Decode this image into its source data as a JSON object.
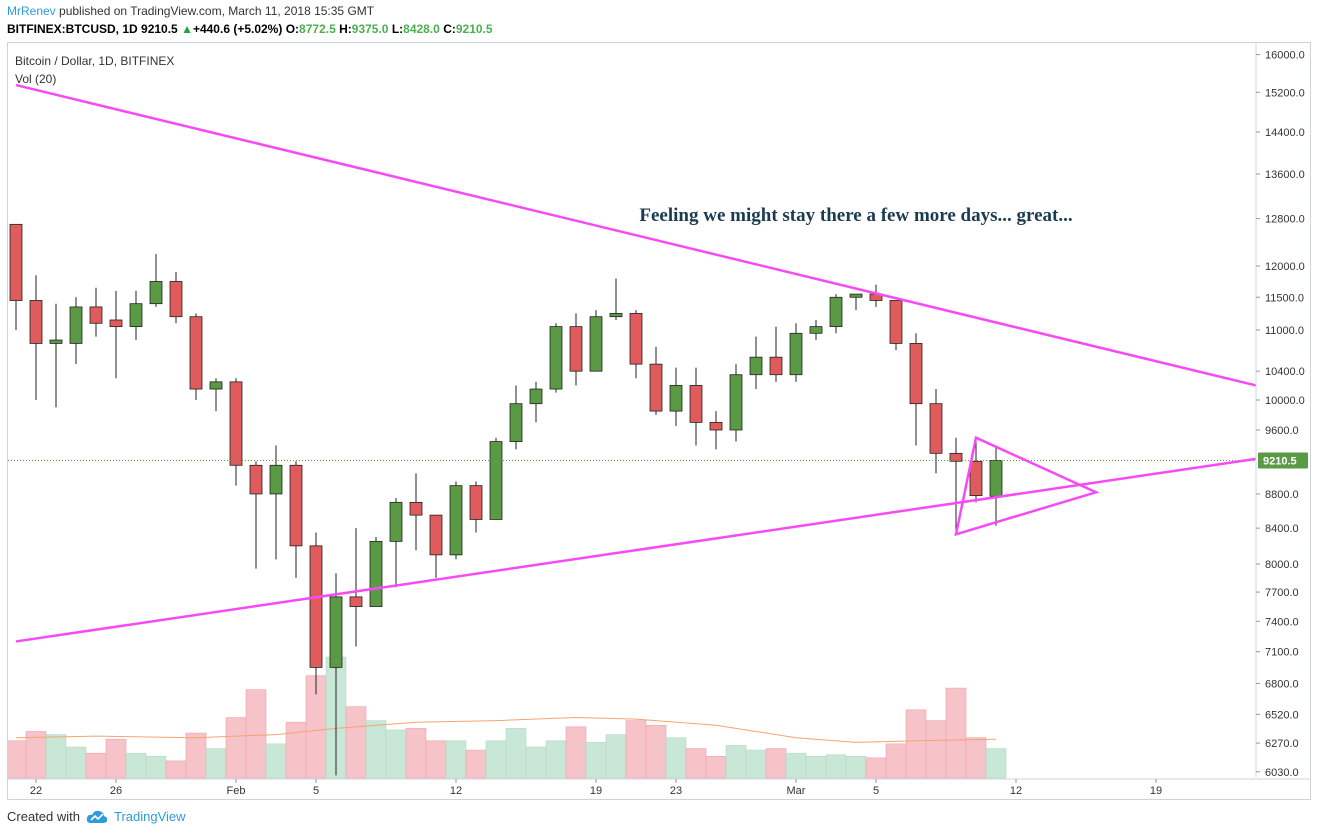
{
  "header": {
    "author": "MrRenev",
    "published_text": "published on TradingView.com, March 11, 2018 15:35 GMT",
    "symbol": "BITFINEX:BTCUSD, 1D",
    "last": "9210.5",
    "change": "+440.6 (+5.02%)",
    "open_label": "O:",
    "open": "8772.5",
    "high_label": "H:",
    "high": "9375.0",
    "low_label": "L:",
    "low": "8428.0",
    "close_label": "C:",
    "close": "9210.5"
  },
  "legend": {
    "title": "Bitcoin / Dollar, 1D, BITFINEX",
    "indicator": "Vol (20)"
  },
  "footer": {
    "created_with": "Created with",
    "brand": "TradingView",
    "logo_icon": "tradingview-cloud-icon"
  },
  "colors": {
    "up": "#5b9a45",
    "down": "#e05b5b",
    "vol_up": "#c9e7d6",
    "vol_down": "#f6c4c8",
    "trendline": "#f64af6",
    "ma": "#f5a470",
    "annotation": "#1b3c50",
    "price_tag": "#5b9a45"
  },
  "chart_data": {
    "type": "candlestick",
    "title": "Bitcoin / Dollar, 1D, BITFINEX",
    "price_scale": "log",
    "y_ticks": [
      16000.0,
      15200.0,
      14400.0,
      13600.0,
      12800.0,
      12000.0,
      11500.0,
      11000.0,
      10400.0,
      10000.0,
      9600.0,
      8800.0,
      8400.0,
      8000.0,
      7700.0,
      7400.0,
      7100.0,
      6800.0,
      6520.0,
      6270.0,
      6030.0
    ],
    "x_tick_labels": [
      {
        "date": "2018-01-22",
        "label": "22"
      },
      {
        "date": "2018-01-26",
        "label": "26"
      },
      {
        "date": "2018-02-01",
        "label": "Feb"
      },
      {
        "date": "2018-02-05",
        "label": "5"
      },
      {
        "date": "2018-02-12",
        "label": "12"
      },
      {
        "date": "2018-02-19",
        "label": "19"
      },
      {
        "date": "2018-02-23",
        "label": "23"
      },
      {
        "date": "2018-03-01",
        "label": "Mar"
      },
      {
        "date": "2018-03-05",
        "label": "5"
      },
      {
        "date": "2018-03-12",
        "label": "12"
      },
      {
        "date": "2018-03-19",
        "label": "19"
      }
    ],
    "x_range": [
      "2018-01-21",
      "2018-03-24"
    ],
    "last_price": 9210.5,
    "candles": [
      {
        "date": "2018-01-21",
        "open": 12700,
        "high": 12700,
        "low": 11000,
        "close": 11450,
        "volume": 24
      },
      {
        "date": "2018-01-22",
        "open": 11450,
        "high": 11850,
        "low": 10000,
        "close": 10800,
        "volume": 30
      },
      {
        "date": "2018-01-23",
        "open": 10800,
        "high": 11400,
        "low": 9900,
        "close": 10850,
        "volume": 28
      },
      {
        "date": "2018-01-24",
        "open": 10800,
        "high": 11500,
        "low": 10500,
        "close": 11350,
        "volume": 20
      },
      {
        "date": "2018-01-25",
        "open": 11350,
        "high": 11650,
        "low": 10900,
        "close": 11100,
        "volume": 16
      },
      {
        "date": "2018-01-26",
        "open": 11150,
        "high": 11600,
        "low": 10300,
        "close": 11050,
        "volume": 25
      },
      {
        "date": "2018-01-27",
        "open": 11050,
        "high": 11600,
        "low": 10850,
        "close": 11400,
        "volume": 16
      },
      {
        "date": "2018-01-28",
        "open": 11400,
        "high": 12200,
        "low": 11350,
        "close": 11750,
        "volume": 14
      },
      {
        "date": "2018-01-29",
        "open": 11750,
        "high": 11900,
        "low": 11100,
        "close": 11200,
        "volume": 11
      },
      {
        "date": "2018-01-30",
        "open": 11200,
        "high": 11250,
        "low": 10000,
        "close": 10150,
        "volume": 29
      },
      {
        "date": "2018-01-31",
        "open": 10150,
        "high": 10300,
        "low": 9850,
        "close": 10250,
        "volume": 19
      },
      {
        "date": "2018-02-01",
        "open": 10250,
        "high": 10300,
        "low": 8900,
        "close": 9150,
        "volume": 39
      },
      {
        "date": "2018-02-02",
        "open": 9150,
        "high": 9200,
        "low": 7950,
        "close": 8800,
        "volume": 57
      },
      {
        "date": "2018-02-03",
        "open": 8800,
        "high": 9400,
        "low": 8050,
        "close": 9150,
        "volume": 22
      },
      {
        "date": "2018-02-04",
        "open": 9150,
        "high": 9200,
        "low": 7850,
        "close": 8200,
        "volume": 36
      },
      {
        "date": "2018-02-05",
        "open": 8200,
        "high": 8350,
        "low": 6700,
        "close": 6950,
        "volume": 66
      },
      {
        "date": "2018-02-06",
        "open": 6950,
        "high": 7900,
        "low": 6000,
        "close": 7650,
        "volume": 78
      },
      {
        "date": "2018-02-07",
        "open": 7650,
        "high": 8400,
        "low": 7150,
        "close": 7550,
        "volume": 46
      },
      {
        "date": "2018-02-08",
        "open": 7550,
        "high": 8300,
        "low": 7600,
        "close": 8250,
        "volume": 37
      },
      {
        "date": "2018-02-09",
        "open": 8250,
        "high": 8750,
        "low": 7750,
        "close": 8700,
        "volume": 31
      },
      {
        "date": "2018-02-10",
        "open": 8700,
        "high": 9050,
        "low": 8150,
        "close": 8550,
        "volume": 32
      },
      {
        "date": "2018-02-11",
        "open": 8550,
        "high": 8550,
        "low": 7850,
        "close": 8100,
        "volume": 24
      },
      {
        "date": "2018-02-12",
        "open": 8100,
        "high": 8950,
        "low": 8050,
        "close": 8900,
        "volume": 24
      },
      {
        "date": "2018-02-13",
        "open": 8900,
        "high": 8950,
        "low": 8350,
        "close": 8500,
        "volume": 18
      },
      {
        "date": "2018-02-14",
        "open": 8500,
        "high": 9500,
        "low": 8500,
        "close": 9450,
        "volume": 24
      },
      {
        "date": "2018-02-15",
        "open": 9450,
        "high": 10200,
        "low": 9350,
        "close": 9950,
        "volume": 32
      },
      {
        "date": "2018-02-16",
        "open": 9950,
        "high": 10250,
        "low": 9700,
        "close": 10150,
        "volume": 20
      },
      {
        "date": "2018-02-17",
        "open": 10150,
        "high": 11100,
        "low": 10100,
        "close": 11050,
        "volume": 24
      },
      {
        "date": "2018-02-18",
        "open": 11050,
        "high": 11250,
        "low": 10200,
        "close": 10400,
        "volume": 33
      },
      {
        "date": "2018-02-19",
        "open": 10400,
        "high": 11300,
        "low": 10400,
        "close": 11200,
        "volume": 23
      },
      {
        "date": "2018-02-20",
        "open": 11200,
        "high": 11800,
        "low": 11150,
        "close": 11250,
        "volume": 28
      },
      {
        "date": "2018-02-21",
        "open": 11250,
        "high": 11300,
        "low": 10300,
        "close": 10500,
        "volume": 37
      },
      {
        "date": "2018-02-22",
        "open": 10500,
        "high": 10750,
        "low": 9800,
        "close": 9850,
        "volume": 34
      },
      {
        "date": "2018-02-23",
        "open": 9850,
        "high": 10450,
        "low": 9650,
        "close": 10200,
        "volume": 26
      },
      {
        "date": "2018-02-24",
        "open": 10200,
        "high": 10450,
        "low": 9400,
        "close": 9700,
        "volume": 19
      },
      {
        "date": "2018-02-25",
        "open": 9700,
        "high": 9850,
        "low": 9350,
        "close": 9600,
        "volume": 14
      },
      {
        "date": "2018-02-26",
        "open": 9600,
        "high": 10500,
        "low": 9450,
        "close": 10350,
        "volume": 21
      },
      {
        "date": "2018-02-27",
        "open": 10350,
        "high": 10900,
        "low": 10150,
        "close": 10600,
        "volume": 18
      },
      {
        "date": "2018-02-28",
        "open": 10600,
        "high": 11050,
        "low": 10250,
        "close": 10350,
        "volume": 19
      },
      {
        "date": "2018-03-01",
        "open": 10350,
        "high": 11100,
        "low": 10250,
        "close": 10950,
        "volume": 16
      },
      {
        "date": "2018-03-02",
        "open": 10950,
        "high": 11150,
        "low": 10850,
        "close": 11050,
        "volume": 14
      },
      {
        "date": "2018-03-03",
        "open": 11050,
        "high": 11550,
        "low": 10950,
        "close": 11500,
        "volume": 15
      },
      {
        "date": "2018-03-04",
        "open": 11500,
        "high": 11550,
        "low": 11300,
        "close": 11550,
        "volume": 14
      },
      {
        "date": "2018-03-05",
        "open": 11550,
        "high": 11700,
        "low": 11350,
        "close": 11450,
        "volume": 13
      },
      {
        "date": "2018-03-06",
        "open": 11450,
        "high": 11450,
        "low": 10700,
        "close": 10800,
        "volume": 22
      },
      {
        "date": "2018-03-07",
        "open": 10800,
        "high": 10950,
        "low": 9400,
        "close": 9950,
        "volume": 44
      },
      {
        "date": "2018-03-08",
        "open": 9950,
        "high": 10150,
        "low": 9050,
        "close": 9300,
        "volume": 37
      },
      {
        "date": "2018-03-09",
        "open": 9300,
        "high": 9500,
        "low": 8350,
        "close": 9200,
        "volume": 58
      },
      {
        "date": "2018-03-10",
        "open": 9200,
        "high": 9500,
        "low": 8700,
        "close": 8780,
        "volume": 26
      },
      {
        "date": "2018-03-11",
        "open": 8772.5,
        "high": 9375.0,
        "low": 8428.0,
        "close": 9210.5,
        "volume": 19
      }
    ],
    "volume_ma": [
      {
        "date": "2018-01-21",
        "value": 26
      },
      {
        "date": "2018-01-25",
        "value": 27
      },
      {
        "date": "2018-01-30",
        "value": 26
      },
      {
        "date": "2018-02-03",
        "value": 28
      },
      {
        "date": "2018-02-06",
        "value": 32
      },
      {
        "date": "2018-02-10",
        "value": 36
      },
      {
        "date": "2018-02-14",
        "value": 37
      },
      {
        "date": "2018-02-18",
        "value": 39
      },
      {
        "date": "2018-02-21",
        "value": 38
      },
      {
        "date": "2018-02-25",
        "value": 34
      },
      {
        "date": "2018-03-01",
        "value": 26
      },
      {
        "date": "2018-03-04",
        "value": 23
      },
      {
        "date": "2018-03-07",
        "value": 24
      },
      {
        "date": "2018-03-11",
        "value": 25
      }
    ],
    "trendlines": [
      {
        "from": {
          "date": "2018-01-21",
          "price": 15350
        },
        "to": {
          "date": "2018-03-24",
          "price": 10200
        }
      },
      {
        "from": {
          "date": "2018-01-21",
          "price": 7200
        },
        "to": {
          "date": "2018-03-24",
          "price": 9230
        }
      }
    ],
    "triangle": [
      {
        "date": "2018-03-10",
        "price": 9500
      },
      {
        "date": "2018-03-16",
        "price": 8820
      },
      {
        "date": "2018-03-09",
        "price": 8330
      }
    ],
    "annotation": {
      "text": "Feeling we might stay there a few more days... great...",
      "date": "2018-03-04",
      "price": 12900
    }
  }
}
